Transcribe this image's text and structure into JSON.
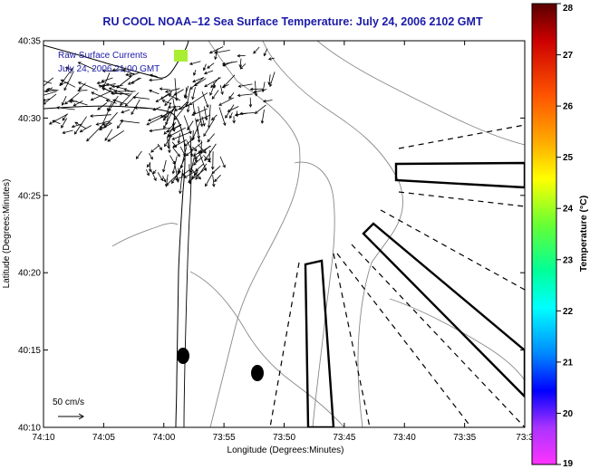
{
  "chart_data": {
    "type": "vector-field",
    "title": "RU COOL  NOAA–12  Sea Surface Temperature:  July 24, 2006 2102 GMT",
    "xlabel": "Longitude (Degrees:Minutes)",
    "ylabel": "Latitude (Degrees:Minutes)",
    "x_ticks": [
      "74:10",
      "74:05",
      "74:00",
      "73:55",
      "73:50",
      "73:45",
      "73:40",
      "73:35",
      "73:3"
    ],
    "y_ticks": [
      "40:35",
      "40:30",
      "40:25",
      "40:20",
      "40:15",
      "40:10"
    ],
    "xlim_minutes_west": [
      4450,
      4410
    ],
    "ylim_minutes_north": [
      2410,
      2435
    ],
    "legend": {
      "line1": "Raw Surface Currents",
      "line2": "July 24, 2006 21:00 GMT"
    },
    "scale_label": "50 cm/s",
    "colorbar": {
      "label": "Temperature (°C)",
      "min": 19,
      "max": 28,
      "ticks": [
        "28",
        "27",
        "26",
        "25",
        "24",
        "23",
        "22",
        "21",
        "20",
        "19"
      ]
    }
  }
}
